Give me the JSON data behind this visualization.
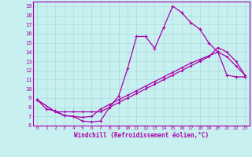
{
  "xlabel": "Windchill (Refroidissement éolien,°C)",
  "bg_color": "#c8f0f0",
  "grid_color": "#b0dede",
  "line_color": "#aa00aa",
  "xlim": [
    -0.5,
    23.5
  ],
  "ylim": [
    6,
    19.5
  ],
  "xticks": [
    0,
    1,
    2,
    3,
    4,
    5,
    6,
    7,
    8,
    9,
    10,
    11,
    12,
    13,
    14,
    15,
    16,
    17,
    18,
    19,
    20,
    21,
    22,
    23
  ],
  "yticks": [
    6,
    7,
    8,
    9,
    10,
    11,
    12,
    13,
    14,
    15,
    16,
    17,
    18,
    19
  ],
  "line1_x": [
    0,
    1,
    2,
    3,
    4,
    5,
    6,
    7,
    8,
    9,
    10,
    11,
    12,
    13,
    14,
    15,
    16,
    17,
    18,
    19,
    20,
    21,
    22,
    23
  ],
  "line1_y": [
    8.8,
    7.8,
    7.6,
    7.1,
    7.0,
    6.5,
    6.4,
    6.5,
    8.0,
    9.2,
    12.2,
    15.7,
    15.7,
    14.4,
    16.7,
    19.0,
    18.3,
    17.2,
    16.5,
    15.0,
    14.0,
    11.5,
    11.3,
    11.3
  ],
  "line2_x": [
    0,
    2,
    3,
    4,
    5,
    6,
    7,
    8,
    9,
    10,
    11,
    12,
    13,
    14,
    15,
    16,
    17,
    18,
    19,
    20,
    21,
    22,
    23
  ],
  "line2_y": [
    8.8,
    7.5,
    7.1,
    7.0,
    6.9,
    7.0,
    7.8,
    8.3,
    8.8,
    9.3,
    9.8,
    10.3,
    10.8,
    11.3,
    11.8,
    12.3,
    12.8,
    13.2,
    13.6,
    14.0,
    13.5,
    12.5,
    11.5
  ],
  "line3_x": [
    0,
    2,
    3,
    4,
    5,
    6,
    7,
    8,
    9,
    10,
    11,
    12,
    13,
    14,
    15,
    16,
    17,
    18,
    19,
    20,
    21,
    22,
    23
  ],
  "line3_y": [
    8.8,
    7.5,
    7.5,
    7.5,
    7.5,
    7.5,
    7.5,
    8.0,
    8.5,
    9.0,
    9.5,
    10.0,
    10.5,
    11.0,
    11.5,
    12.0,
    12.5,
    13.0,
    13.5,
    14.5,
    14.0,
    13.0,
    11.5
  ]
}
